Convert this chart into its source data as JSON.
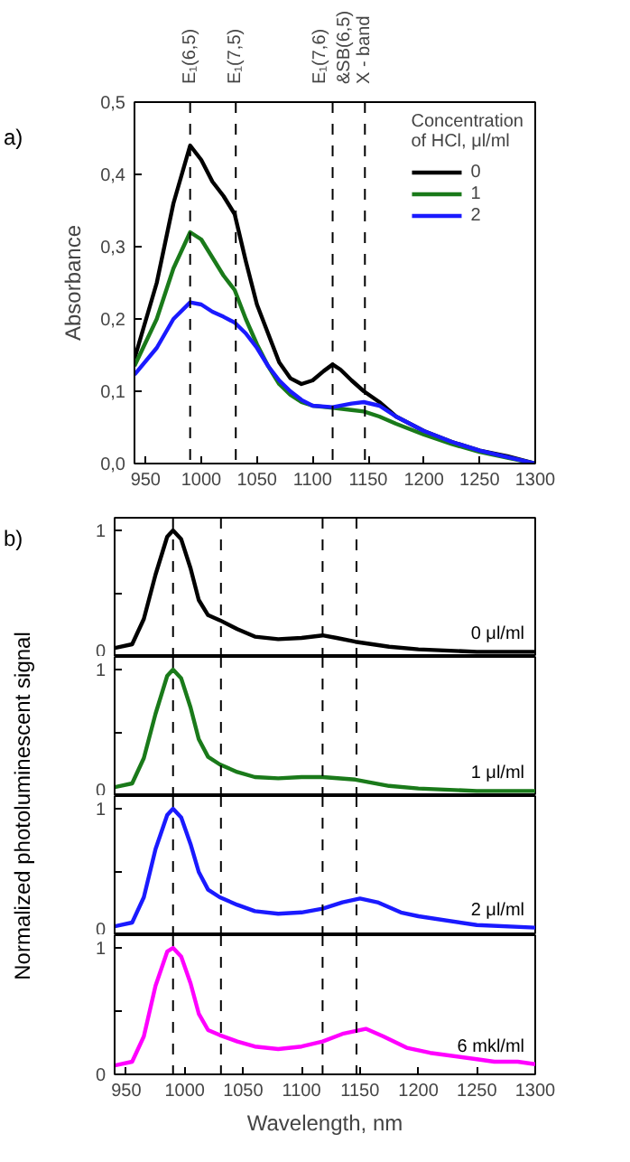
{
  "chart_data": [
    {
      "type": "line",
      "ylabel": "Absorbance",
      "annotations": [
        "a)"
      ],
      "legend_title": "Concentration\nof HCl, μl/ml",
      "legend": "top right",
      "grid": false,
      "line_style": "solid",
      "xlim": [
        940,
        1300
      ],
      "ylim": [
        0,
        0.5
      ],
      "xticks": [
        950,
        1000,
        1050,
        1100,
        1150,
        1200,
        1250,
        1300
      ],
      "yticks": [
        {
          "value": 0,
          "label": "0,0"
        },
        {
          "value": 0.1,
          "label": "0,1"
        },
        {
          "value": 0.2,
          "label": "0,2"
        },
        {
          "value": 0.3,
          "label": "0,3"
        },
        {
          "value": 0.4,
          "label": "0,4"
        },
        {
          "value": 0.5,
          "label": "0,5"
        }
      ],
      "ref_lines": [
        {
          "axis": "x",
          "value": 990,
          "label": "E₁(6,5)",
          "line_style": "dashed",
          "color": "#000000"
        },
        {
          "axis": "x",
          "value": 1031,
          "label": "E₁(7,5)",
          "line_style": "dashed",
          "color": "#000000"
        },
        {
          "axis": "x",
          "value": 1118,
          "label": "E₁(7,6)\n&SB(6,5)",
          "line_style": "dashed",
          "color": "#000000"
        },
        {
          "axis": "x",
          "value": 1147,
          "label": "X - band",
          "line_style": "dashed",
          "color": "#000000"
        }
      ],
      "series": [
        {
          "name": "0",
          "color": "#000000",
          "x": [
            940,
            960,
            975,
            990,
            1000,
            1010,
            1020,
            1030,
            1040,
            1050,
            1060,
            1070,
            1080,
            1090,
            1100,
            1110,
            1118,
            1125,
            1135,
            1146,
            1160,
            1175,
            1200,
            1225,
            1250,
            1275,
            1300
          ],
          "values": [
            0.145,
            0.25,
            0.36,
            0.44,
            0.42,
            0.39,
            0.37,
            0.345,
            0.28,
            0.22,
            0.18,
            0.14,
            0.118,
            0.11,
            0.115,
            0.128,
            0.137,
            0.13,
            0.115,
            0.1,
            0.085,
            0.065,
            0.045,
            0.03,
            0.018,
            0.01,
            0
          ]
        },
        {
          "name": "1",
          "color": "#1a7a1a",
          "x": [
            940,
            960,
            975,
            990,
            1000,
            1010,
            1020,
            1030,
            1040,
            1050,
            1060,
            1070,
            1080,
            1090,
            1100,
            1118,
            1135,
            1146,
            1160,
            1175,
            1200,
            1225,
            1250,
            1275,
            1300
          ],
          "values": [
            0.135,
            0.2,
            0.27,
            0.32,
            0.31,
            0.285,
            0.26,
            0.24,
            0.2,
            0.165,
            0.135,
            0.11,
            0.095,
            0.085,
            0.08,
            0.077,
            0.074,
            0.072,
            0.065,
            0.055,
            0.04,
            0.027,
            0.016,
            0.008,
            0
          ]
        },
        {
          "name": "2",
          "color": "#1a1aff",
          "x": [
            940,
            960,
            975,
            990,
            1000,
            1010,
            1020,
            1030,
            1040,
            1050,
            1060,
            1070,
            1080,
            1090,
            1100,
            1118,
            1135,
            1146,
            1160,
            1175,
            1200,
            1225,
            1250,
            1275,
            1300
          ],
          "values": [
            0.123,
            0.16,
            0.2,
            0.223,
            0.22,
            0.21,
            0.203,
            0.195,
            0.18,
            0.16,
            0.135,
            0.115,
            0.1,
            0.088,
            0.08,
            0.078,
            0.083,
            0.085,
            0.08,
            0.065,
            0.045,
            0.03,
            0.018,
            0.009,
            0
          ]
        }
      ]
    },
    {
      "type": "line",
      "ylabel": "Normalized photoluminescent signal",
      "annotations": [
        "b)"
      ],
      "grid": false,
      "line_style": "solid",
      "tick_labels": "y",
      "xlim": [
        940,
        1300
      ],
      "ylim": [
        0,
        1.1
      ],
      "yticks": [
        0,
        {
          "value": 0.5,
          "label": null
        },
        1
      ],
      "ref_lines": [
        {
          "axis": "x",
          "value": 990,
          "line_style": "dashed",
          "color": "#000000"
        },
        {
          "axis": "x",
          "value": 1031,
          "line_style": "dashed",
          "color": "#000000"
        },
        {
          "axis": "x",
          "value": 1118,
          "line_style": "dashed",
          "color": "#000000"
        },
        {
          "axis": "x",
          "value": 1147,
          "line_style": "dashed",
          "color": "#000000"
        }
      ],
      "series": [
        {
          "name": "0 μl/ml",
          "color": "#000000",
          "x": [
            940,
            955,
            965,
            975,
            985,
            990,
            997,
            1005,
            1012,
            1020,
            1030,
            1045,
            1060,
            1080,
            1100,
            1118,
            1130,
            1146,
            1175,
            1200,
            1250,
            1300
          ],
          "values": [
            0.07,
            0.1,
            0.3,
            0.65,
            0.95,
            1.0,
            0.93,
            0.7,
            0.45,
            0.33,
            0.29,
            0.22,
            0.16,
            0.14,
            0.15,
            0.17,
            0.15,
            0.12,
            0.08,
            0.06,
            0.04,
            0.04
          ]
        }
      ]
    },
    {
      "type": "line",
      "grid": false,
      "line_style": "solid",
      "tick_labels": "y",
      "xlim": [
        940,
        1300
      ],
      "ylim": [
        0,
        1.1
      ],
      "yticks": [
        0,
        {
          "value": 0.5,
          "label": null
        },
        1
      ],
      "ref_lines": [
        {
          "axis": "x",
          "value": 990,
          "line_style": "dashed",
          "color": "#000000"
        },
        {
          "axis": "x",
          "value": 1031,
          "line_style": "dashed",
          "color": "#000000"
        },
        {
          "axis": "x",
          "value": 1118,
          "line_style": "dashed",
          "color": "#000000"
        },
        {
          "axis": "x",
          "value": 1147,
          "line_style": "dashed",
          "color": "#000000"
        }
      ],
      "series": [
        {
          "name": "1 μl/ml",
          "color": "#1a7a1a",
          "x": [
            940,
            955,
            965,
            975,
            985,
            990,
            997,
            1005,
            1012,
            1020,
            1030,
            1045,
            1060,
            1080,
            1100,
            1118,
            1146,
            1175,
            1200,
            1250,
            1300
          ],
          "values": [
            0.07,
            0.1,
            0.3,
            0.65,
            0.95,
            1.0,
            0.93,
            0.7,
            0.45,
            0.31,
            0.25,
            0.19,
            0.15,
            0.14,
            0.15,
            0.15,
            0.13,
            0.08,
            0.06,
            0.04,
            0.04
          ]
        }
      ]
    },
    {
      "type": "line",
      "grid": false,
      "line_style": "solid",
      "tick_labels": "y",
      "xlim": [
        940,
        1300
      ],
      "ylim": [
        0,
        1.1
      ],
      "yticks": [
        0,
        {
          "value": 0.5,
          "label": null
        },
        1
      ],
      "ref_lines": [
        {
          "axis": "x",
          "value": 990,
          "line_style": "dashed",
          "color": "#000000"
        },
        {
          "axis": "x",
          "value": 1031,
          "line_style": "dashed",
          "color": "#000000"
        },
        {
          "axis": "x",
          "value": 1118,
          "line_style": "dashed",
          "color": "#000000"
        },
        {
          "axis": "x",
          "value": 1147,
          "line_style": "dashed",
          "color": "#000000"
        }
      ],
      "series": [
        {
          "name": "2 μl/ml",
          "color": "#1a1aff",
          "x": [
            940,
            955,
            965,
            975,
            985,
            990,
            997,
            1005,
            1012,
            1020,
            1030,
            1045,
            1060,
            1080,
            1100,
            1118,
            1135,
            1150,
            1165,
            1185,
            1200,
            1250,
            1300
          ],
          "values": [
            0.07,
            0.1,
            0.3,
            0.68,
            0.95,
            1.0,
            0.93,
            0.72,
            0.5,
            0.36,
            0.3,
            0.24,
            0.19,
            0.17,
            0.18,
            0.21,
            0.26,
            0.29,
            0.26,
            0.18,
            0.15,
            0.08,
            0.06
          ]
        }
      ]
    },
    {
      "type": "line",
      "xlabel": "Wavelength, nm",
      "grid": false,
      "line_style": "solid",
      "xlim": [
        940,
        1300
      ],
      "ylim": [
        0,
        1.1
      ],
      "xticks": [
        950,
        1000,
        1050,
        1100,
        1150,
        1200,
        1250,
        1300
      ],
      "yticks": [
        0,
        {
          "value": 0.5,
          "label": null
        },
        1
      ],
      "ref_lines": [
        {
          "axis": "x",
          "value": 990,
          "line_style": "dashed",
          "color": "#000000"
        },
        {
          "axis": "x",
          "value": 1031,
          "line_style": "dashed",
          "color": "#000000"
        },
        {
          "axis": "x",
          "value": 1118,
          "line_style": "dashed",
          "color": "#000000"
        },
        {
          "axis": "x",
          "value": 1147,
          "line_style": "dashed",
          "color": "#000000"
        }
      ],
      "series": [
        {
          "name": "6 mkl/ml",
          "color": "#ff00ff",
          "x": [
            940,
            955,
            965,
            975,
            985,
            990,
            997,
            1005,
            1012,
            1020,
            1030,
            1045,
            1060,
            1080,
            1100,
            1118,
            1135,
            1155,
            1170,
            1190,
            1210,
            1250,
            1265,
            1285,
            1300
          ],
          "values": [
            0.07,
            0.1,
            0.3,
            0.7,
            0.97,
            1.0,
            0.93,
            0.72,
            0.48,
            0.35,
            0.31,
            0.26,
            0.22,
            0.2,
            0.22,
            0.26,
            0.32,
            0.36,
            0.3,
            0.21,
            0.17,
            0.12,
            0.1,
            0.1,
            0.08
          ]
        }
      ]
    }
  ]
}
